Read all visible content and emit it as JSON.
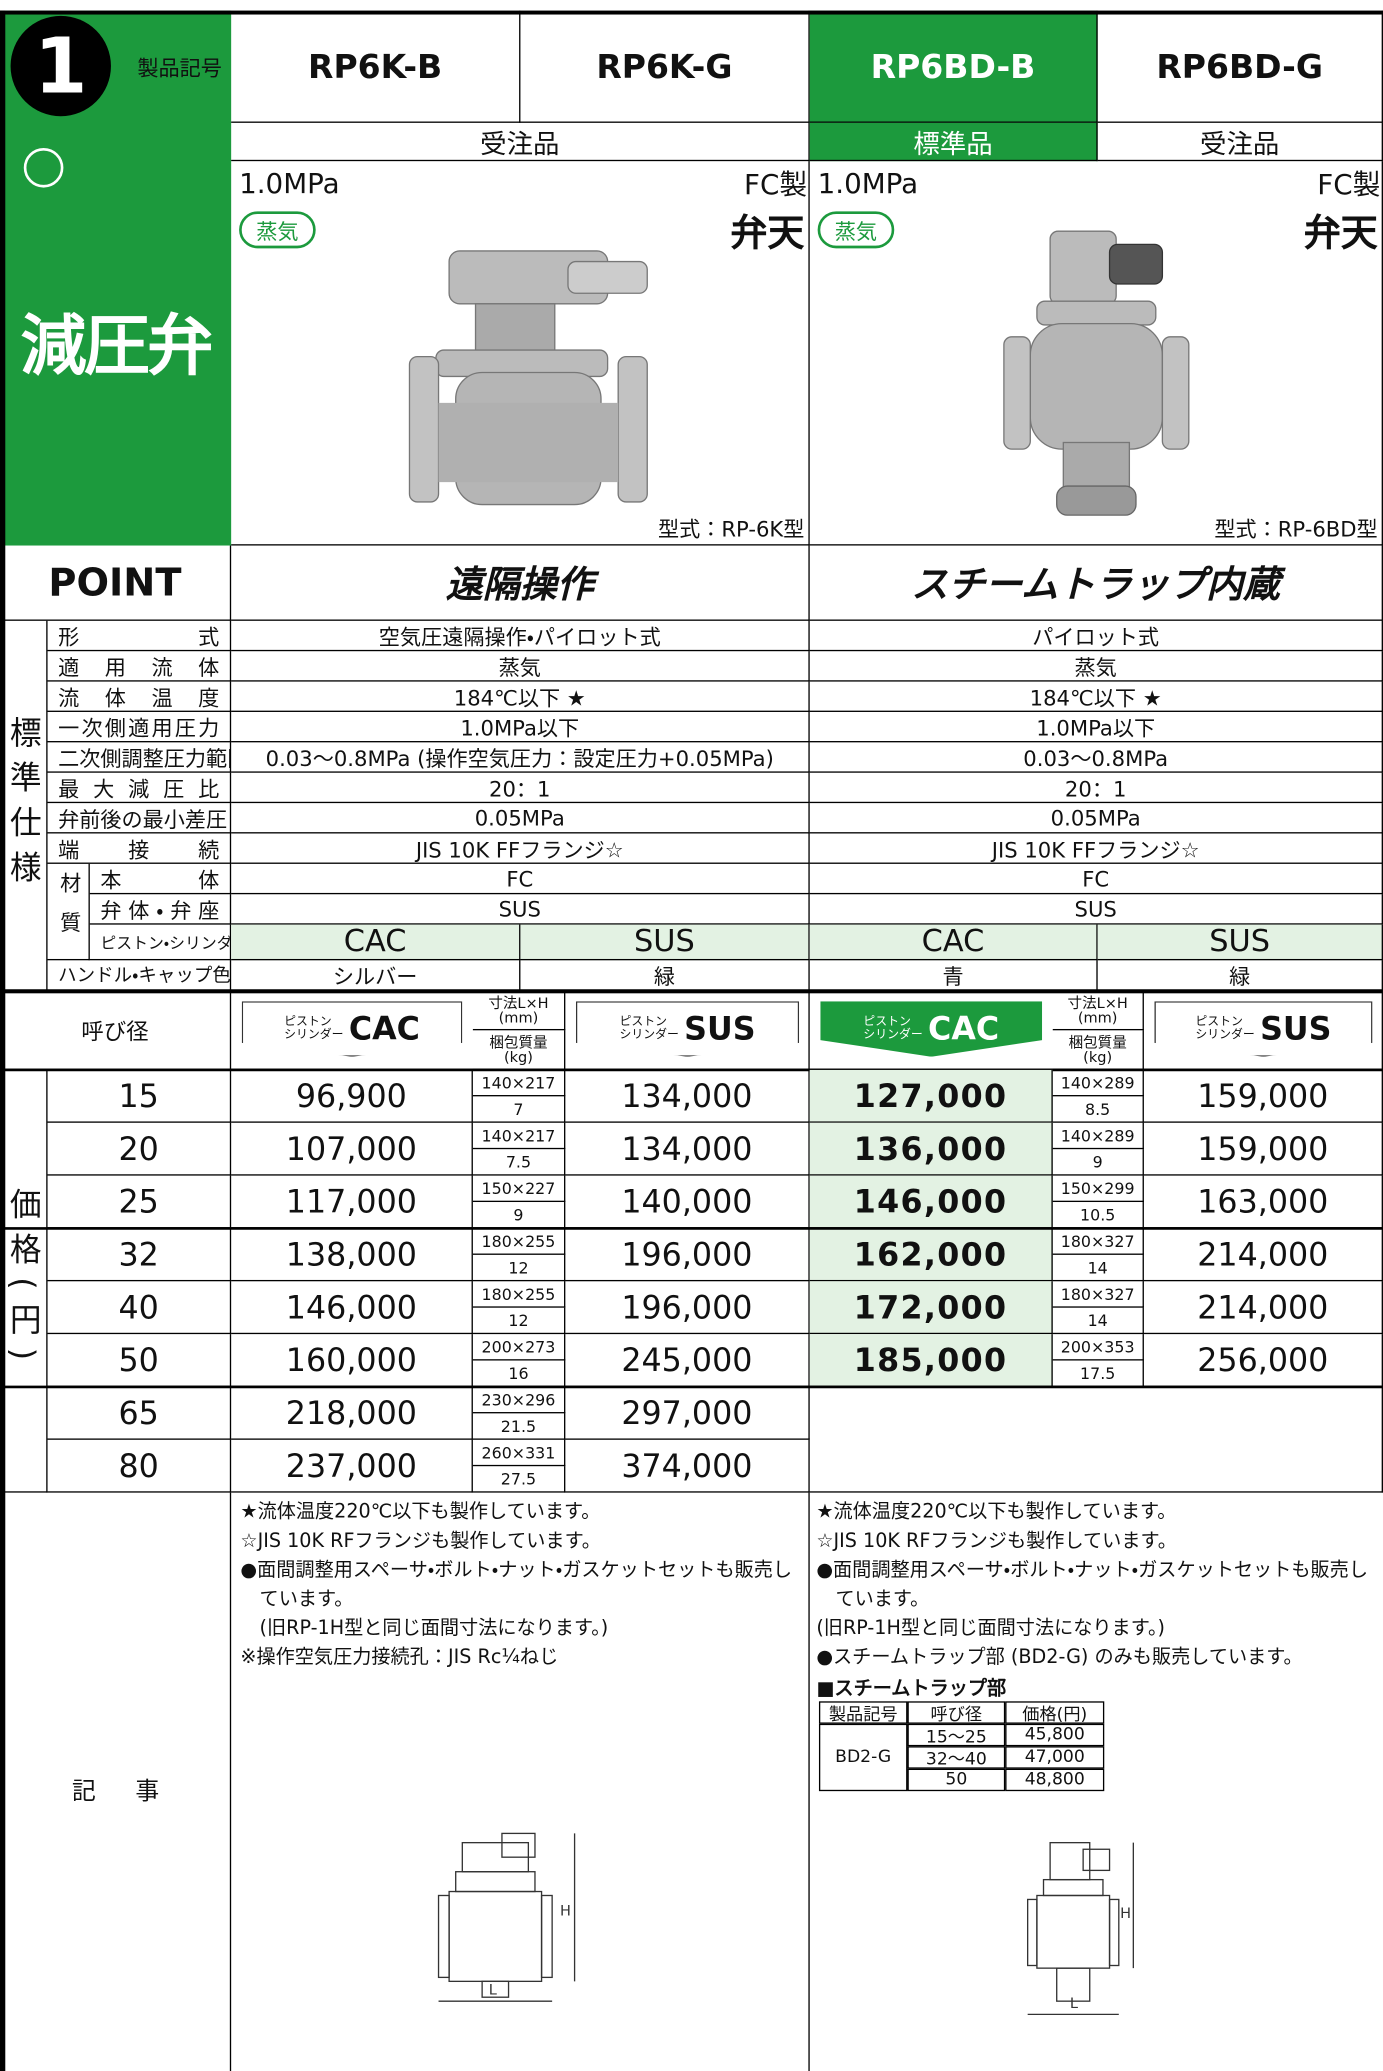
{
  "header": {
    "badge": "1",
    "label": "製品記号",
    "category": "減圧弁",
    "models": [
      "RP6K-B",
      "RP6K-G",
      "RP6BD-B",
      "RP6BD-G"
    ],
    "order_types": [
      "受注品",
      "標準品",
      "受注品"
    ]
  },
  "products": [
    {
      "pressure": "1.0MPa",
      "material": "FC製",
      "brand": "弁天",
      "medium": "蒸気",
      "model_type": "型式：RP-6K型"
    },
    {
      "pressure": "1.0MPa",
      "material": "FC製",
      "brand": "弁天",
      "medium": "蒸気",
      "model_type": "型式：RP-6BD型"
    }
  ],
  "point": {
    "label": "POINT",
    "items": [
      "遠隔操作",
      "スチームトラップ内蔵"
    ]
  },
  "spec": {
    "group": "標準仕様",
    "rows": [
      {
        "label": "形式",
        "values": [
          "空気圧遠隔操作・パイロット式",
          "パイロット式"
        ]
      },
      {
        "label": "適用流体",
        "values": [
          "蒸気",
          "蒸気"
        ]
      },
      {
        "label": "流体温度",
        "values": [
          "184℃以下 ★",
          "184℃以下 ★"
        ]
      },
      {
        "label": "一次側適用圧力",
        "values": [
          "1.0MPa以下",
          "1.0MPa以下"
        ]
      },
      {
        "label": "二次側調整圧力範囲",
        "values": [
          "0.03～0.8MPa (操作空気圧力：設定圧力+0.05MPa)",
          "0.03～0.8MPa"
        ]
      },
      {
        "label": "最大減圧比",
        "values": [
          "20：1",
          "20：1"
        ]
      },
      {
        "label": "弁前後の最小差圧",
        "values": [
          "0.05MPa",
          "0.05MPa"
        ]
      },
      {
        "label": "端接続",
        "values": [
          "JIS 10K FFフランジ☆",
          "JIS 10K FFフランジ☆"
        ]
      }
    ],
    "material": {
      "label": "材質",
      "rows": [
        {
          "label": "本体",
          "values": [
            "FC",
            "FC"
          ]
        },
        {
          "label": "弁体・弁座",
          "values": [
            "SUS",
            "SUS"
          ]
        },
        {
          "label": "ピストン・シリンダー",
          "values": [
            "CAC",
            "SUS",
            "CAC",
            "SUS"
          ]
        }
      ]
    },
    "handle": {
      "label": "ハンドル・キャップ色",
      "values": [
        "シルバー",
        "緑",
        "青",
        "緑"
      ]
    }
  },
  "price": {
    "group": "価格(円)",
    "header": {
      "size": "呼び径",
      "piston": "ピストン",
      "cylinder": "シリンダー",
      "materials": [
        "CAC",
        "SUS"
      ],
      "dim": "寸法L×H",
      "dim_unit": "(mm)",
      "weight": "梱包質量",
      "weight_unit": "(kg)"
    },
    "rows": [
      {
        "size": "15",
        "left": [
          "96,900",
          "140×217",
          "7",
          "134,000"
        ],
        "right": [
          "127,000",
          "140×289",
          "8.5",
          "159,000"
        ]
      },
      {
        "size": "20",
        "left": [
          "107,000",
          "140×217",
          "7.5",
          "134,000"
        ],
        "right": [
          "136,000",
          "140×289",
          "9",
          "159,000"
        ]
      },
      {
        "size": "25",
        "left": [
          "117,000",
          "150×227",
          "9",
          "140,000"
        ],
        "right": [
          "146,000",
          "150×299",
          "10.5",
          "163,000"
        ]
      },
      {
        "size": "32",
        "left": [
          "138,000",
          "180×255",
          "12",
          "196,000"
        ],
        "right": [
          "162,000",
          "180×327",
          "14",
          "214,000"
        ]
      },
      {
        "size": "40",
        "left": [
          "146,000",
          "180×255",
          "12",
          "196,000"
        ],
        "right": [
          "172,000",
          "180×327",
          "14",
          "214,000"
        ]
      },
      {
        "size": "50",
        "left": [
          "160,000",
          "200×273",
          "16",
          "245,000"
        ],
        "right": [
          "185,000",
          "200×353",
          "17.5",
          "256,000"
        ]
      },
      {
        "size": "65",
        "left": [
          "218,000",
          "230×296",
          "21.5",
          "297,000"
        ]
      },
      {
        "size": "80",
        "left": [
          "237,000",
          "260×331",
          "27.5",
          "374,000"
        ]
      }
    ]
  },
  "notes": {
    "label": "記事",
    "left": [
      "★流体温度220℃以下も製作しています。",
      "☆JIS 10K RFフランジも製作しています。",
      "●面間調整用スペーサ・ボルト・ナット・ガスケットセットも販売しています。",
      "　(旧RP-1H型と同じ面間寸法になります。)",
      "※操作空気圧力接続孔：JIS Rc¼ねじ"
    ],
    "right": [
      "★流体温度220℃以下も製作しています。",
      "☆JIS 10K RFフランジも製作しています。",
      "●面間調整用スペーサ・ボルト・ナット・ガスケットセットも販売しています。",
      "(旧RP-1H型と同じ面間寸法になります。)",
      "●スチームトラップ部 (BD2-G) のみも販売しています。"
    ],
    "trap": {
      "title": "■スチームトラップ部",
      "headers": [
        "製品記号",
        "呼び径",
        "価格(円)"
      ],
      "code": "BD2-G",
      "rows": [
        [
          "15～25",
          "45,800"
        ],
        [
          "32～40",
          "47,000"
        ],
        [
          "50",
          "48,800"
        ]
      ]
    }
  },
  "drawing_labels": {
    "h": "H",
    "l": "L"
  }
}
